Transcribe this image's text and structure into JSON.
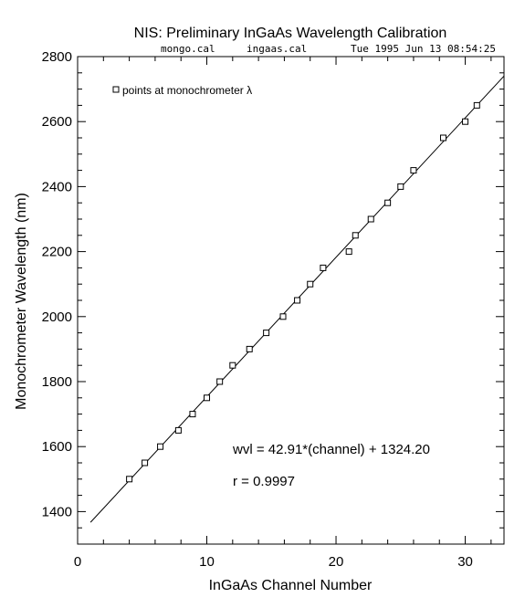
{
  "chart_data": {
    "type": "scatter",
    "title": "NIS: Preliminary InGaAs Wavelength Calibration",
    "subtitle": {
      "left_file": "mongo.cal",
      "right_file": "ingaas.cal",
      "timestamp": "Tue 1995 Jun 13 08:54:25"
    },
    "xlabel": "InGaAs Channel Number",
    "ylabel": "Monochrometer Wavelength (nm)",
    "xlim": [
      0,
      33
    ],
    "ylim": [
      1300,
      2800
    ],
    "xticks": [
      0,
      10,
      20,
      30
    ],
    "yticks": [
      1400,
      1600,
      1800,
      2000,
      2200,
      2400,
      2600,
      2800
    ],
    "grid": false,
    "legend": {
      "placement": "top-left",
      "label": "points at monochrometer λ"
    },
    "series": [
      {
        "name": "points at monochrometer λ",
        "marker": "square",
        "x": [
          4.0,
          5.2,
          6.4,
          7.8,
          8.9,
          10.0,
          11.0,
          12.0,
          13.3,
          14.6,
          15.9,
          17.0,
          18.0,
          19.0,
          21.0,
          21.5,
          22.7,
          24.0,
          25.0,
          26.0,
          28.3,
          30.0,
          30.9
        ],
        "y": [
          1500,
          1550,
          1600,
          1650,
          1700,
          1750,
          1800,
          1850,
          1900,
          1950,
          2000,
          2050,
          2100,
          2150,
          2200,
          2250,
          2300,
          2350,
          2400,
          2450,
          2550,
          2600,
          2650
        ]
      }
    ],
    "fit_line": {
      "slope": 42.91,
      "intercept": 1324.2,
      "x_range": [
        1.0,
        33.0
      ]
    },
    "annotations": [
      "wvl = 42.91*(channel) + 1324.20",
      "r = 0.9997"
    ],
    "colors": {
      "background": "#ffffff",
      "foreground": "#000000"
    }
  }
}
